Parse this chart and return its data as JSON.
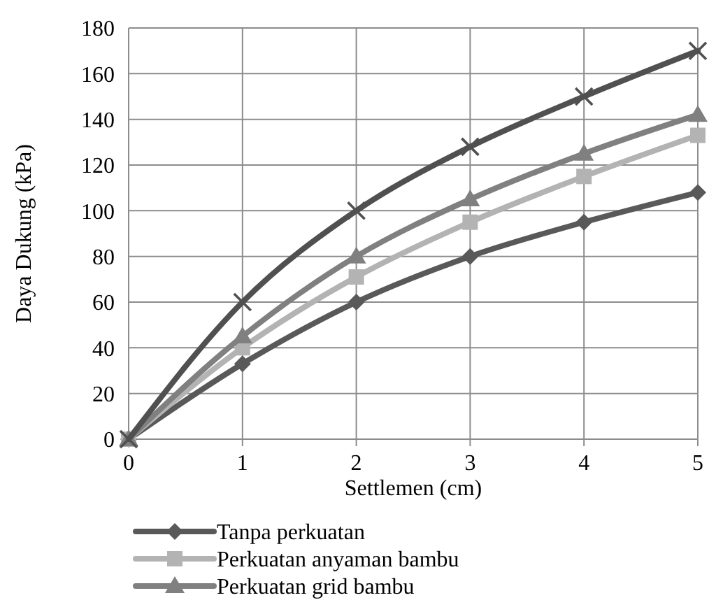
{
  "chart_data": {
    "type": "line",
    "xlabel": "Settlemen (cm)",
    "ylabel": "Daya Dukung (kPa)",
    "x": [
      0,
      1,
      2,
      3,
      4,
      5
    ],
    "series": [
      {
        "name": "Tanpa perkuatan",
        "color": "#595959",
        "marker": "diamond",
        "values": [
          0,
          33,
          60,
          80,
          95,
          108
        ]
      },
      {
        "name": "Perkuatan anyaman bambu",
        "color": "#b3b3b3",
        "marker": "square",
        "values": [
          0,
          40,
          71,
          95,
          115,
          133
        ]
      },
      {
        "name": "Perkuatan grid bambu",
        "color": "#808080",
        "marker": "triangle",
        "values": [
          0,
          45,
          80,
          105,
          125,
          142
        ]
      },
      {
        "color": "#505050",
        "marker": "cross",
        "values": [
          0,
          60,
          100,
          128,
          150,
          170
        ]
      }
    ],
    "xlim": [
      0,
      5
    ],
    "xticks": [
      0,
      1,
      2,
      3,
      4,
      5
    ],
    "ylim": [
      0,
      180
    ],
    "yticks": [
      0,
      20,
      40,
      60,
      80,
      100,
      120,
      140,
      160,
      180
    ],
    "grid": true,
    "legend": "bottom",
    "line_style": "solid"
  }
}
